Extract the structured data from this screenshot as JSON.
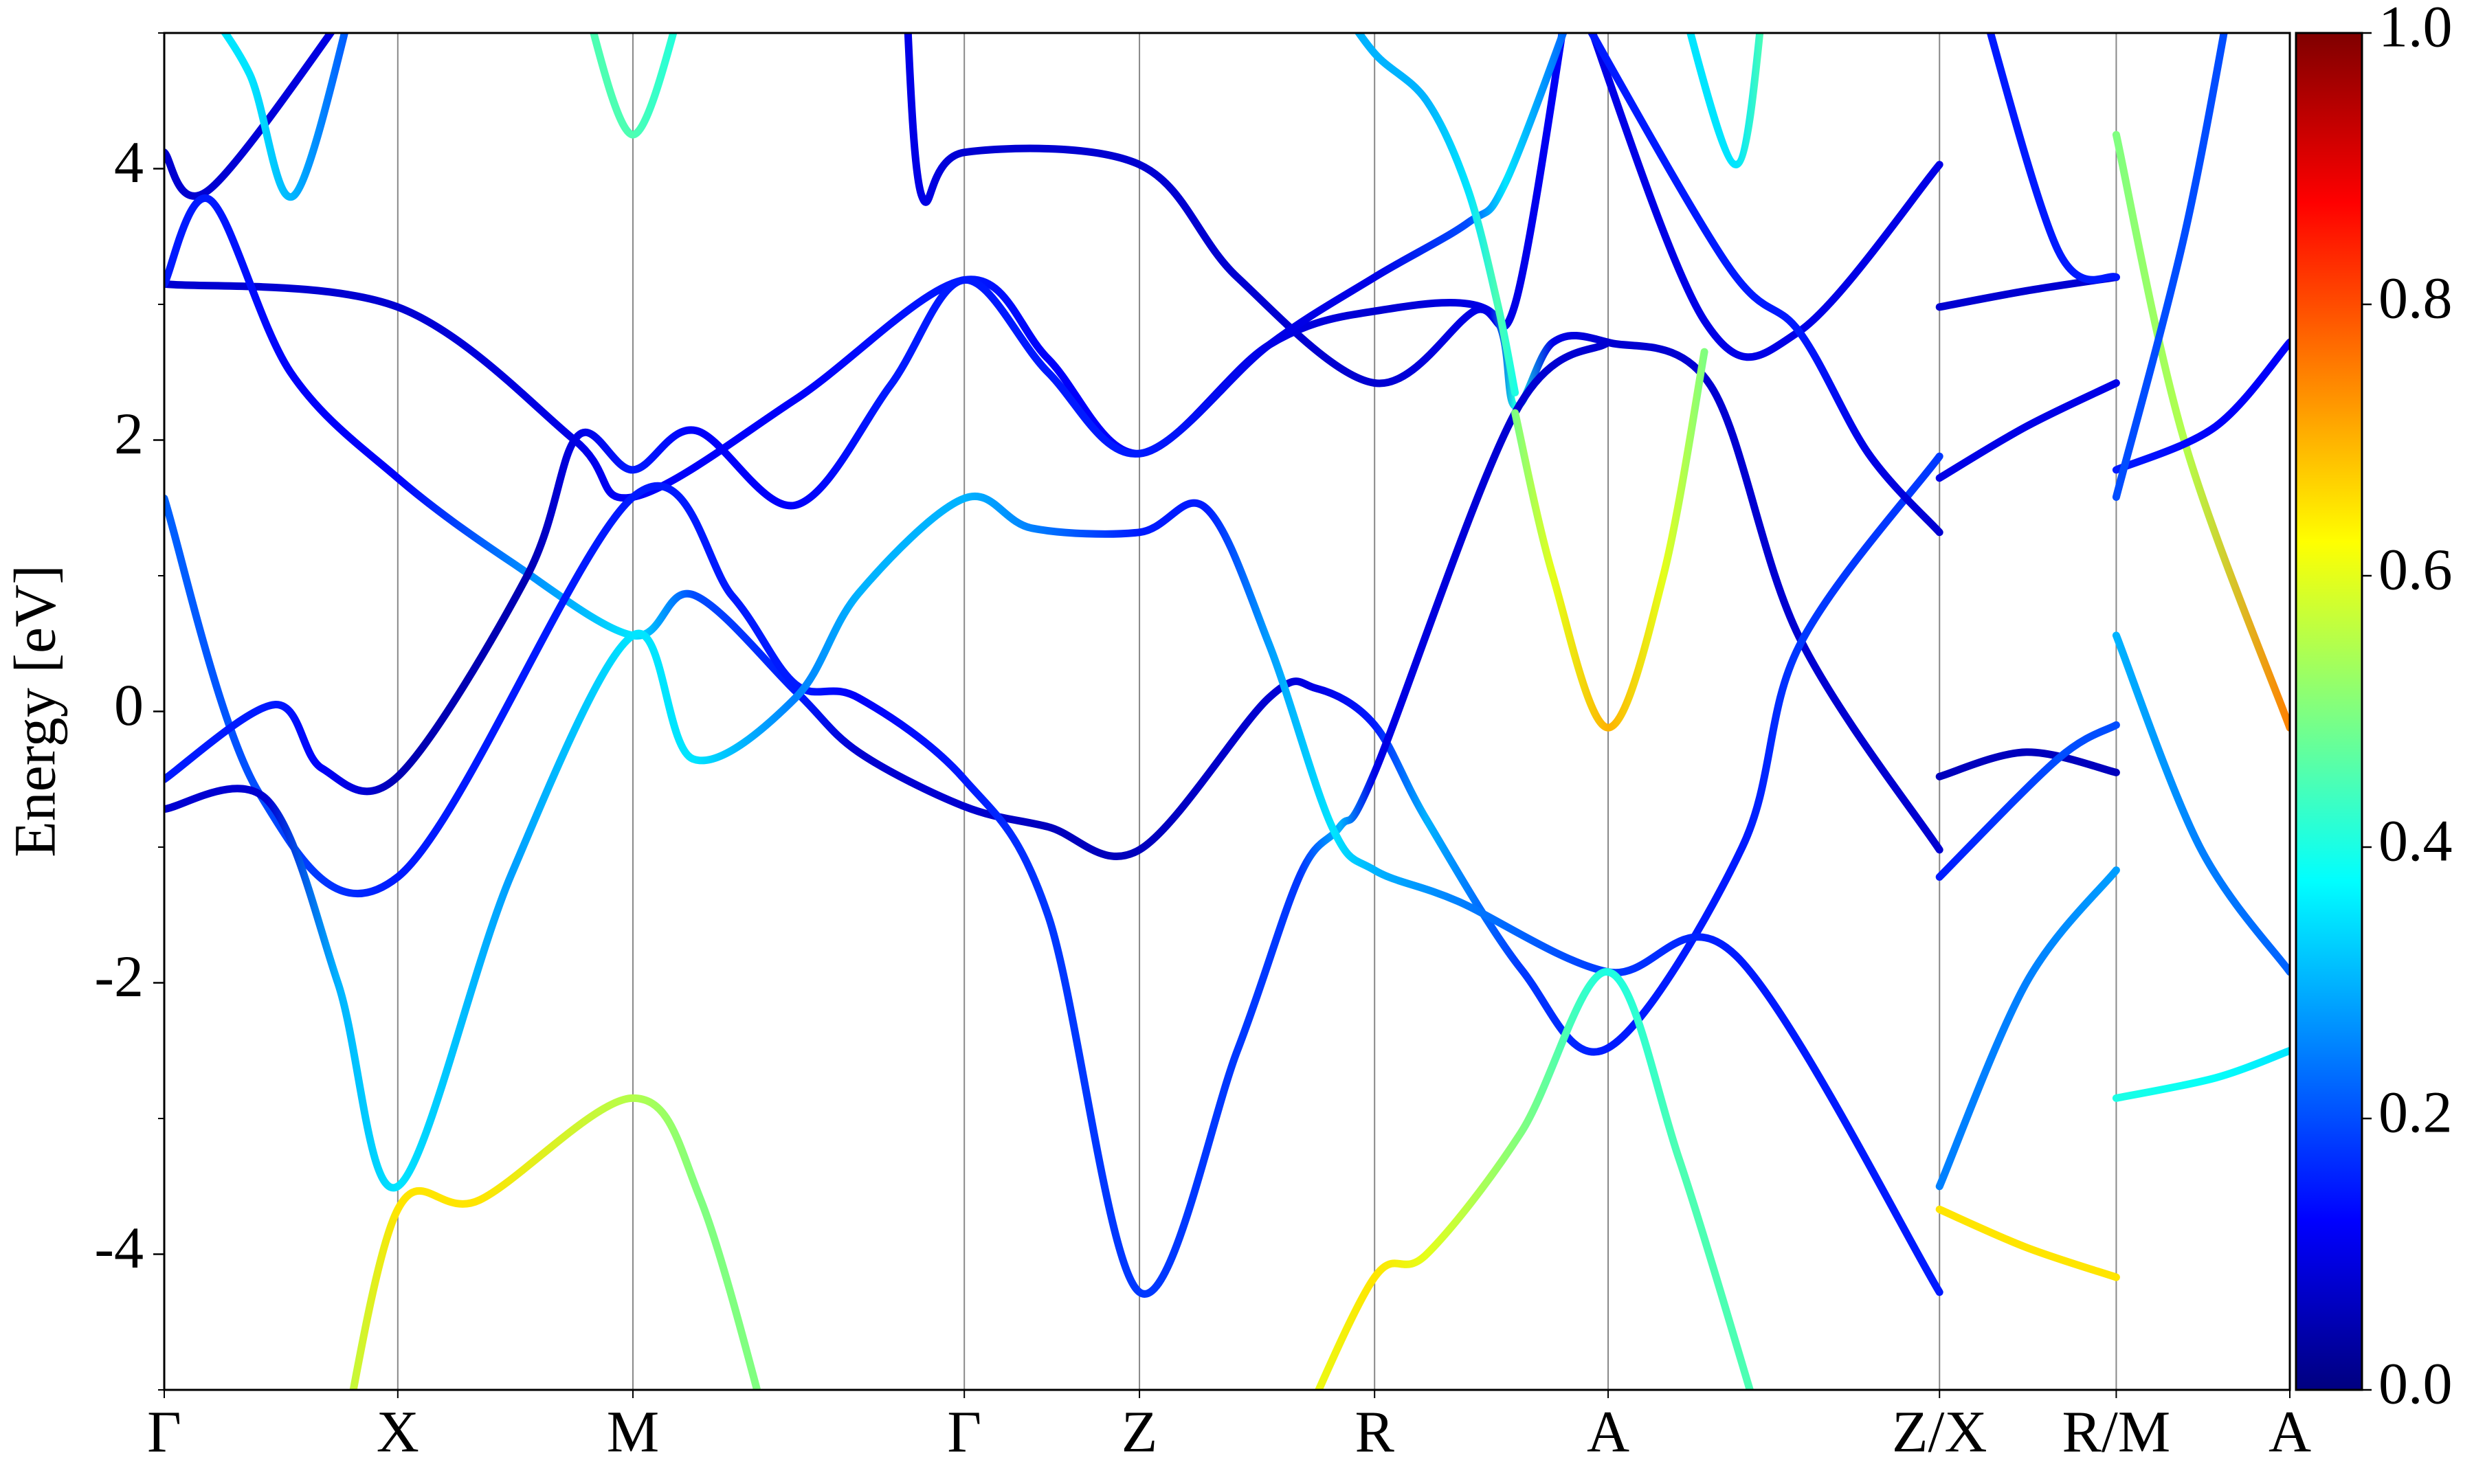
{
  "chart_data": {
    "type": "band",
    "ylabel": "Energy [eV]",
    "xlim": [
      0,
      1347
    ],
    "ylim": [
      -5,
      5
    ],
    "xticks": [
      {
        "value": 0,
        "label": "Γ"
      },
      {
        "value": 148,
        "label": "X"
      },
      {
        "value": 297,
        "label": "M"
      },
      {
        "value": 507,
        "label": "Γ"
      },
      {
        "value": 618,
        "label": "Z"
      },
      {
        "value": 767,
        "label": "R"
      },
      {
        "value": 915,
        "label": "A"
      },
      {
        "value": 1125,
        "label": "Z/X"
      },
      {
        "value": 1237,
        "label": "R/M"
      },
      {
        "value": 1347,
        "label": "A"
      }
    ],
    "yticks": [
      -4,
      -2,
      0,
      2,
      4
    ],
    "y_minor_ticks": [
      -5,
      -3,
      -1,
      1,
      3,
      5
    ],
    "grid": "x",
    "colormap": "jet",
    "colorbar": {
      "lim": [
        0,
        1
      ],
      "ticks": [
        {
          "value": 0,
          "label": "0.0"
        },
        {
          "value": 0.2,
          "label": "0.2"
        },
        {
          "value": 0.4,
          "label": "0.4"
        },
        {
          "value": 0.6,
          "label": "0.6"
        },
        {
          "value": 0.8,
          "label": "0.8"
        },
        {
          "value": 1,
          "label": "1.0"
        }
      ]
    },
    "series": [
      {
        "x": [
          0,
          29,
          124
        ],
        "values": [
          4.12,
          3.85,
          5.3
        ],
        "weights": [
          0.08,
          0.08,
          0.1
        ]
      },
      {
        "x": [
          470,
          480,
          507,
          618,
          680,
          767,
          830,
          856,
          890
        ],
        "values": [
          5.3,
          3.8,
          4.12,
          4.03,
          3.2,
          2.42,
          2.95,
          3.0,
          5.3
        ],
        "weights": [
          0.1,
          0.1,
          0.08,
          0.08,
          0.08,
          0.08,
          0.1,
          0.1,
          0.12
        ]
      },
      {
        "x": [
          0,
          148,
          260,
          297,
          400,
          507,
          560,
          618,
          700,
          767,
          840,
          856,
          880,
          915,
          980,
          1036,
          1125
        ],
        "values": [
          3.15,
          2.98,
          2.0,
          1.58,
          2.3,
          3.18,
          2.6,
          1.9,
          2.7,
          2.95,
          2.95,
          2.25,
          2.72,
          2.72,
          2.4,
          0.55,
          -1.02
        ],
        "weights": [
          0.08,
          0.08,
          0.1,
          0.12,
          0.12,
          0.15,
          0.12,
          0.12,
          0.1,
          0.08,
          0.1,
          0.4,
          0.1,
          0.08,
          0.08,
          0.08,
          0.08
        ]
      },
      {
        "x": [
          0,
          29,
          80,
          148,
          220,
          297,
          335,
          400,
          440,
          507,
          560,
          618,
          700,
          730,
          767,
          800,
          860,
          915,
          1000,
          1036,
          1125
        ],
        "values": [
          3.15,
          3.77,
          2.5,
          1.72,
          1.1,
          0.56,
          0.86,
          0.15,
          -0.3,
          -0.7,
          -0.85,
          -1.02,
          0.1,
          0.17,
          -0.1,
          -0.8,
          -1.9,
          -2.48,
          -1.0,
          0.48,
          1.88
        ],
        "weights": [
          0.15,
          0.15,
          0.12,
          0.12,
          0.25,
          0.35,
          0.2,
          0.15,
          0.08,
          0.08,
          0.06,
          0.06,
          0.08,
          0.1,
          0.15,
          0.3,
          0.18,
          0.15,
          0.15,
          0.18,
          0.18
        ]
      },
      {
        "x": [
          0,
          60,
          148,
          297,
          360,
          400,
          440,
          507,
          560,
          618,
          680,
          720,
          745,
          767,
          856,
          915
        ],
        "values": [
          1.57,
          -0.6,
          -1.22,
          1.58,
          0.85,
          0.2,
          0.1,
          -0.5,
          -1.5,
          -4.28,
          -2.5,
          -1.2,
          -0.85,
          -0.45,
          2.2,
          2.72
        ],
        "weights": [
          0.22,
          0.2,
          0.15,
          0.15,
          0.15,
          0.15,
          0.12,
          0.15,
          0.18,
          0.18,
          0.18,
          0.18,
          0.3,
          0.1,
          0.08,
          0.08
        ]
      },
      {
        "x": [
          0,
          70,
          100,
          148,
          230,
          262,
          297,
          337,
          400,
          460,
          507,
          560,
          618,
          700,
          767,
          826,
          850,
          896
        ],
        "values": [
          -0.5,
          0.05,
          -0.42,
          -0.48,
          1.0,
          2.03,
          1.78,
          2.07,
          1.52,
          2.4,
          3.18,
          2.5,
          1.9,
          2.7,
          3.2,
          3.6,
          3.9,
          5.3
        ],
        "weights": [
          0.15,
          0.15,
          0.12,
          0.05,
          0.05,
          0.1,
          0.15,
          0.12,
          0.12,
          0.15,
          0.15,
          0.15,
          0.15,
          0.1,
          0.1,
          0.2,
          0.35,
          0.2
        ]
      },
      {
        "x": [
          0,
          65,
          110,
          148,
          220,
          297,
          335,
          400,
          440,
          507,
          550,
          618,
          660,
          700,
          740,
          767,
          820,
          915,
          996,
          1125
        ],
        "values": [
          -0.72,
          -0.65,
          -2.0,
          -3.5,
          -1.2,
          0.56,
          -0.35,
          0.1,
          0.87,
          1.57,
          1.35,
          1.32,
          1.5,
          0.5,
          -0.85,
          -1.17,
          -1.4,
          -1.92,
          -1.8,
          -4.28
        ],
        "weights": [
          0.08,
          0.08,
          0.3,
          0.35,
          0.28,
          0.35,
          0.35,
          0.25,
          0.3,
          0.3,
          0.25,
          0.15,
          0.15,
          0.28,
          0.35,
          0.3,
          0.25,
          0.18,
          0.15,
          0.15
        ]
      },
      {
        "x": [
          20,
          54,
          82,
          121
        ],
        "values": [
          5.3,
          4.7,
          3.8,
          5.3
        ],
        "weights": [
          0.35,
          0.35,
          0.3,
          0.2
        ]
      },
      {
        "x": [
          265,
          297,
          330
        ],
        "values": [
          5.3,
          4.25,
          5.3
        ],
        "weights": [
          0.45,
          0.45,
          0.4
        ]
      },
      {
        "x": [
          110,
          148,
          200,
          297,
          340,
          385
        ],
        "values": [
          -5.6,
          -3.67,
          -3.6,
          -2.85,
          -3.6,
          -5.4
        ],
        "weights": [
          0.55,
          0.65,
          0.65,
          0.55,
          0.5,
          0.5
        ]
      },
      {
        "x": [
          720,
          767,
          800,
          860,
          915,
          960,
          1010
        ],
        "values": [
          -5.3,
          -4.17,
          -4.0,
          -3.1,
          -1.92,
          -3.3,
          -5.2
        ],
        "weights": [
          0.6,
          0.65,
          0.6,
          0.5,
          0.4,
          0.45,
          0.45
        ]
      },
      {
        "x": [
          856,
          880,
          915,
          950,
          976
        ],
        "values": [
          2.2,
          1.0,
          -0.12,
          1.0,
          2.65
        ],
        "weights": [
          0.5,
          0.6,
          0.7,
          0.6,
          0.5
        ]
      },
      {
        "x": [
          740,
          767,
          800,
          826,
          845,
          856
        ],
        "values": [
          5.3,
          4.85,
          4.5,
          3.85,
          3.0,
          2.35
        ],
        "weights": [
          0.3,
          0.3,
          0.3,
          0.35,
          0.45,
          0.4
        ]
      },
      {
        "x": [
          960,
          996,
          1014
        ],
        "values": [
          5.3,
          4.03,
          5.3
        ],
        "weights": [
          0.35,
          0.35,
          0.45
        ]
      },
      {
        "x": [
          896,
          976,
          1036,
          1125
        ],
        "values": [
          5.3,
          2.88,
          2.8,
          4.03
        ],
        "weights": [
          0.1,
          0.1,
          0.1,
          0.1
        ]
      },
      {
        "x": [
          890,
          990,
          1036,
          1080,
          1125
        ],
        "values": [
          5.3,
          3.3,
          2.8,
          1.9,
          1.32
        ],
        "weights": [
          0.15,
          0.15,
          0.15,
          0.1,
          0.08
        ]
      },
      {
        "x": [
          1125,
          1180,
          1237
        ],
        "values": [
          2.98,
          3.1,
          3.2
        ],
        "weights": [
          0.08,
          0.08,
          0.08
        ]
      },
      {
        "x": [
          1125,
          1180,
          1237
        ],
        "values": [
          1.72,
          2.1,
          2.42
        ],
        "weights": [
          0.1,
          0.1,
          0.1
        ]
      },
      {
        "x": [
          1125,
          1180,
          1237
        ],
        "values": [
          -0.48,
          -0.3,
          -0.45
        ],
        "weights": [
          0.06,
          0.06,
          0.06
        ]
      },
      {
        "x": [
          1125,
          1200,
          1237
        ],
        "values": [
          -1.22,
          -0.35,
          -0.1
        ],
        "weights": [
          0.15,
          0.2,
          0.2
        ]
      },
      {
        "x": [
          1125,
          1180,
          1237
        ],
        "values": [
          -3.5,
          -2.0,
          -1.17
        ],
        "weights": [
          0.25,
          0.25,
          0.28
        ]
      },
      {
        "x": [
          1125,
          1180,
          1237
        ],
        "values": [
          -3.67,
          -3.95,
          -4.17
        ],
        "weights": [
          0.65,
          0.65,
          0.65
        ]
      },
      {
        "x": [
          1150,
          1200,
          1237
        ],
        "values": [
          5.3,
          3.4,
          3.2
        ],
        "weights": [
          0.15,
          0.15,
          0.15
        ]
      },
      {
        "x": [
          1237,
          1280,
          1347
        ],
        "values": [
          4.25,
          2.0,
          -0.12
        ],
        "weights": [
          0.5,
          0.55,
          0.75
        ]
      },
      {
        "x": [
          1237,
          1300,
          1347
        ],
        "values": [
          1.78,
          2.1,
          2.72
        ],
        "weights": [
          0.15,
          0.12,
          0.12
        ]
      },
      {
        "x": [
          1237,
          1280,
          1310
        ],
        "values": [
          1.58,
          3.5,
          5.3
        ],
        "weights": [
          0.2,
          0.2,
          0.2
        ]
      },
      {
        "x": [
          1237,
          1290,
          1347
        ],
        "values": [
          0.56,
          -1.0,
          -1.92
        ],
        "weights": [
          0.3,
          0.25,
          0.22
        ]
      },
      {
        "x": [
          1237,
          1300,
          1347
        ],
        "values": [
          -2.85,
          -2.7,
          -2.5
        ],
        "weights": [
          0.4,
          0.38,
          0.35
        ]
      }
    ]
  }
}
